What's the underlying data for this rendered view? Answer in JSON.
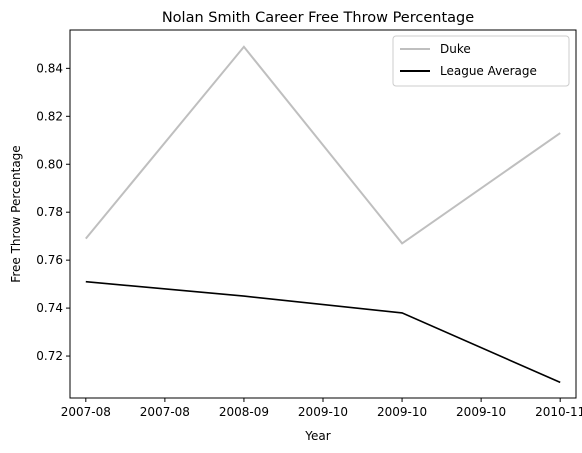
{
  "chart_data": {
    "type": "line",
    "title": "Nolan Smith Career Free Throw Percentage",
    "xlabel": "Year",
    "ylabel": "Free Throw Percentage",
    "x": [
      0,
      1,
      2,
      3
    ],
    "xlim": [
      -0.1,
      3.1
    ],
    "xticks": [
      {
        "value": 0.0,
        "label": "2007-08"
      },
      {
        "value": 0.5,
        "label": "2007-08"
      },
      {
        "value": 1.0,
        "label": "2008-09"
      },
      {
        "value": 1.5,
        "label": "2009-10"
      },
      {
        "value": 2.0,
        "label": "2009-10"
      },
      {
        "value": 2.5,
        "label": "2009-10"
      },
      {
        "value": 3.0,
        "label": "2010-11"
      }
    ],
    "ylim": [
      0.7025,
      0.856
    ],
    "yticks": [
      {
        "value": 0.72,
        "label": "0.72"
      },
      {
        "value": 0.74,
        "label": "0.74"
      },
      {
        "value": 0.76,
        "label": "0.76"
      },
      {
        "value": 0.78,
        "label": "0.78"
      },
      {
        "value": 0.8,
        "label": "0.80"
      },
      {
        "value": 0.82,
        "label": "0.82"
      },
      {
        "value": 0.84,
        "label": "0.84"
      }
    ],
    "grid": false,
    "legend_position": "upper right",
    "series": [
      {
        "name": "Duke",
        "color": "#bfbfbf",
        "values": [
          0.769,
          0.849,
          0.767,
          0.813
        ]
      },
      {
        "name": "League Average",
        "color": "#000000",
        "values": [
          0.751,
          0.745,
          0.738,
          0.709
        ]
      }
    ]
  }
}
